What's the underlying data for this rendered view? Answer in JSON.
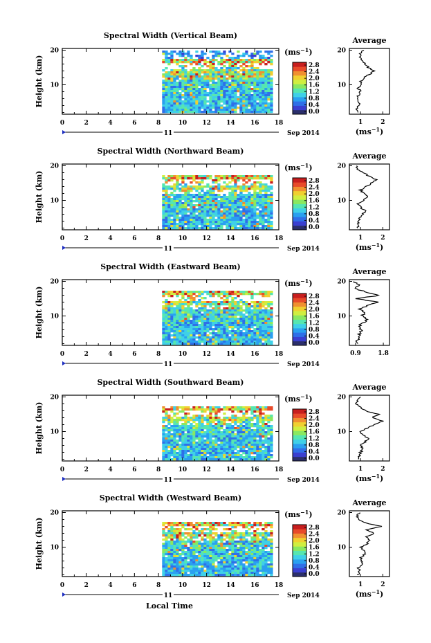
{
  "figure": {
    "x_axis_label": "Local Time",
    "date_label": "Sep 2014",
    "day_label": "11",
    "colorbar_unit": "(ms",
    "colorbar_unit_exp": "−1",
    "colorbar_unit_close": ")",
    "average_title": "Average",
    "y_axis_label": "Height (km)",
    "colorscale": [
      "#2b2f6b",
      "#3a3fd0",
      "#2f6fe8",
      "#2aa0f0",
      "#3fd0e8",
      "#56e6b0",
      "#8ae860",
      "#d0ee40",
      "#f0d030",
      "#f09030",
      "#e84a2a",
      "#c81e1e"
    ]
  },
  "chart_data": [
    {
      "type": "heatmap",
      "title": "Spectral Width (Vertical Beam)",
      "x_ticks": [
        0,
        2,
        4,
        6,
        8,
        10,
        12,
        14,
        16,
        18
      ],
      "y_ticks": [
        10,
        20
      ],
      "xlim": [
        0,
        18
      ],
      "ylim": [
        1.5,
        20.5
      ],
      "data_start_hour": 8.3,
      "data_end_hour": 17.3,
      "colorbar_ticks": [
        "0.0",
        "0.4",
        "0.8",
        "1.2",
        "1.6",
        "2.0",
        "2.4",
        "2.8"
      ],
      "colorbar_range": [
        0,
        3.0
      ],
      "avg_x_ticks": [
        1,
        2
      ],
      "avg_xlim": [
        0.5,
        2.3
      ],
      "avg_xlabel": "(ms",
      "avg_xlabel_exp": "−1",
      "avg_xlabel_close": ")",
      "avg_profile": {
        "height": [
          2,
          3,
          4,
          5,
          6,
          7,
          8,
          9,
          10,
          11,
          12,
          13,
          14,
          15,
          16,
          17,
          18,
          19,
          20
        ],
        "value": [
          0.9,
          0.85,
          0.9,
          0.95,
          0.85,
          0.9,
          1.0,
          0.9,
          1.05,
          1.0,
          1.15,
          1.4,
          1.6,
          1.35,
          1.2,
          1.1,
          1.0,
          0.95,
          1.1
        ]
      }
    },
    {
      "type": "heatmap",
      "title": "Spectral Width (Northward Beam)",
      "x_ticks": [
        0,
        2,
        4,
        6,
        8,
        10,
        12,
        14,
        16,
        18
      ],
      "y_ticks": [
        10,
        20
      ],
      "xlim": [
        0,
        18
      ],
      "ylim": [
        1.5,
        20.5
      ],
      "data_start_hour": 8.3,
      "data_end_hour": 17.3,
      "colorbar_ticks": [
        "0.0",
        "0.4",
        "0.8",
        "1.2",
        "1.6",
        "2.0",
        "2.4",
        "2.8"
      ],
      "colorbar_range": [
        0,
        3.0
      ],
      "avg_x_ticks": [
        1,
        2
      ],
      "avg_xlim": [
        0.5,
        2.3
      ],
      "avg_xlabel": "(ms",
      "avg_xlabel_exp": "−1",
      "avg_xlabel_close": ")",
      "avg_profile": {
        "height": [
          2,
          3,
          4,
          5,
          6,
          7,
          8,
          9,
          10,
          11,
          12,
          13,
          14,
          15,
          16,
          17,
          18,
          19,
          20
        ],
        "value": [
          0.85,
          0.9,
          0.85,
          1.0,
          1.1,
          1.2,
          1.0,
          0.9,
          1.1,
          1.3,
          1.15,
          1.0,
          1.25,
          1.5,
          1.7,
          1.4,
          1.1,
          0.9,
          0.8
        ]
      }
    },
    {
      "type": "heatmap",
      "title": "Spectral Width (Eastward Beam)",
      "x_ticks": [
        0,
        2,
        4,
        6,
        8,
        10,
        12,
        14,
        16,
        18
      ],
      "y_ticks": [
        10,
        20
      ],
      "xlim": [
        0,
        18
      ],
      "ylim": [
        1.5,
        20.5
      ],
      "data_start_hour": 8.3,
      "data_end_hour": 17.3,
      "colorbar_ticks": [
        "0.0",
        "0.4",
        "0.8",
        "1.2",
        "1.6",
        "2.0",
        "2.4",
        "2.8"
      ],
      "colorbar_range": [
        0,
        3.0
      ],
      "avg_x_ticks": [
        "0.9",
        "1.8"
      ],
      "avg_xlim": [
        0.7,
        2.0
      ],
      "avg_xlabel": "",
      "avg_xlabel_exp": "",
      "avg_xlabel_close": "",
      "avg_profile": {
        "height": [
          2,
          3,
          4,
          5,
          6,
          7,
          8,
          9,
          10,
          11,
          12,
          13,
          14,
          15,
          16,
          17,
          18,
          19,
          20
        ],
        "value": [
          0.95,
          0.95,
          1.0,
          1.05,
          1.1,
          1.0,
          1.15,
          1.3,
          1.1,
          1.2,
          1.0,
          1.3,
          1.6,
          0.95,
          1.7,
          1.2,
          0.9,
          1.0,
          0.85
        ]
      }
    },
    {
      "type": "heatmap",
      "title": "Spectral Width (Southward Beam)",
      "x_ticks": [
        0,
        2,
        4,
        6,
        8,
        10,
        12,
        14,
        16,
        18
      ],
      "y_ticks": [
        10,
        20
      ],
      "xlim": [
        0,
        18
      ],
      "ylim": [
        1.5,
        20.5
      ],
      "data_start_hour": 8.3,
      "data_end_hour": 17.3,
      "colorbar_ticks": [
        "0.0",
        "0.4",
        "0.8",
        "1.2",
        "1.6",
        "2.0",
        "2.4",
        "2.8"
      ],
      "colorbar_range": [
        0,
        3.0
      ],
      "avg_x_ticks": [
        1,
        2
      ],
      "avg_xlim": [
        0.5,
        2.3
      ],
      "avg_xlabel": "(ms",
      "avg_xlabel_exp": "−1",
      "avg_xlabel_close": ")",
      "avg_profile": {
        "height": [
          2,
          3,
          4,
          5,
          6,
          7,
          8,
          9,
          10,
          11,
          12,
          13,
          14,
          15,
          16,
          17,
          18,
          19,
          20
        ],
        "value": [
          0.9,
          0.95,
          1.0,
          1.1,
          1.0,
          1.2,
          1.35,
          1.1,
          1.0,
          1.3,
          1.6,
          2.0,
          1.5,
          1.8,
          1.2,
          1.0,
          0.8,
          0.85,
          1.0
        ]
      }
    },
    {
      "type": "heatmap",
      "title": "Spectral Width (Westward Beam)",
      "x_ticks": [
        0,
        2,
        4,
        6,
        8,
        10,
        12,
        14,
        16,
        18
      ],
      "y_ticks": [
        10,
        20
      ],
      "xlim": [
        0,
        18
      ],
      "ylim": [
        1.5,
        20.5
      ],
      "data_start_hour": 8.3,
      "data_end_hour": 17.3,
      "colorbar_ticks": [
        "0.0",
        "0.4",
        "0.8",
        "1.2",
        "1.6",
        "2.0",
        "2.4",
        "2.8"
      ],
      "colorbar_range": [
        0,
        3.0
      ],
      "avg_x_ticks": [
        1,
        2
      ],
      "avg_xlim": [
        0.5,
        2.3
      ],
      "avg_xlabel": "(ms",
      "avg_xlabel_exp": "−1",
      "avg_xlabel_close": ")",
      "avg_profile": {
        "height": [
          2,
          3,
          4,
          5,
          6,
          7,
          8,
          9,
          10,
          11,
          12,
          13,
          14,
          15,
          16,
          17,
          18,
          19,
          20
        ],
        "value": [
          0.9,
          0.95,
          0.9,
          1.1,
          1.05,
          1.0,
          1.2,
          1.15,
          1.0,
          1.3,
          1.4,
          1.25,
          1.6,
          1.3,
          1.9,
          1.2,
          0.9,
          0.85,
          0.95
        ]
      }
    }
  ]
}
